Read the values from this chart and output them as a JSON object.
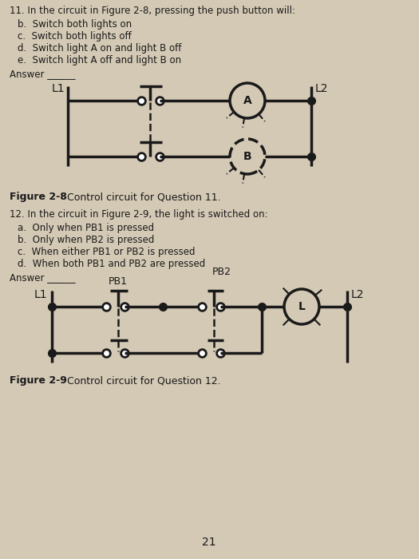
{
  "bg_color": "#d4c9b5",
  "text_color": "#1a1a1a",
  "line_color": "#1a1a1a",
  "page_number": "21",
  "q11": {
    "title": "11. In the circuit in Figure 2-8, pressing the push button will:",
    "options": [
      "b.  Switch both lights on",
      "c.  Switch both lights off",
      "d.  Switch light A on and light B off",
      "e.  Switch light A off and light B on"
    ],
    "answer_label": "Answer ______",
    "figure_label": "Figure 2-8",
    "figure_caption": "    Control circuit for Question 11."
  },
  "q12": {
    "title": "12. In the circuit in Figure 2-9, the light is switched on:",
    "options": [
      "a.  Only when PB1 is pressed",
      "b.  Only when PB2 is pressed",
      "c.  When either PB1 or PB2 is pressed",
      "d.  When both PB1 and PB2 are pressed"
    ],
    "answer_label": "Answer ______",
    "figure_label": "Figure 2-9",
    "figure_caption": "    Control circuit for Question 12."
  }
}
